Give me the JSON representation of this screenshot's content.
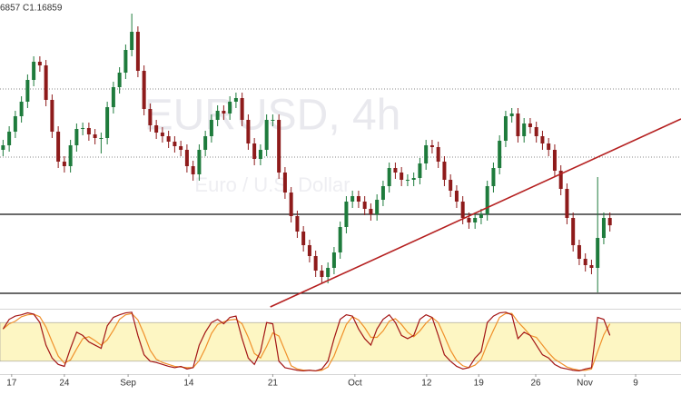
{
  "chart_data": [
    {
      "type": "candlestick",
      "legend_text": "6857 C1.16859",
      "watermark": "EURUSD, 4h",
      "watermark_subtitle": "Euro / U.S. Dollar",
      "up_color": "#1e7b3c",
      "down_color": "#8e1b1b",
      "xlim": [
        -0.5,
        110.6
      ],
      "ylim": [
        1.1594,
        1.1934
      ],
      "x": [
        0,
        1,
        2,
        3,
        4,
        5,
        6,
        7,
        8,
        9,
        10,
        11,
        12,
        13,
        14,
        15,
        16,
        17,
        18,
        19,
        20,
        21,
        22,
        23,
        24,
        25,
        26,
        27,
        28,
        29,
        30,
        31,
        32,
        33,
        34,
        35,
        36,
        37,
        38,
        39,
        40,
        41,
        42,
        43,
        44,
        45,
        46,
        47,
        48,
        49,
        50,
        51,
        52,
        53,
        54,
        55,
        56,
        57,
        58,
        59,
        60,
        61,
        62,
        63,
        64,
        65,
        66,
        67,
        68,
        69,
        70,
        71,
        72,
        73,
        74,
        75,
        76,
        77,
        78,
        79,
        80,
        81,
        82,
        83,
        84,
        85,
        86,
        87,
        88,
        89,
        90,
        91,
        92,
        93,
        94,
        95,
        96,
        97,
        98,
        99
      ],
      "open": [
        1.1769,
        1.1774,
        1.1789,
        1.1806,
        1.1822,
        1.1846,
        1.1866,
        1.1862,
        1.1824,
        1.1789,
        1.1756,
        1.1751,
        1.1774,
        1.1792,
        1.1793,
        1.1786,
        1.1782,
        1.1782,
        1.1816,
        1.1838,
        1.1854,
        1.1879,
        1.1899,
        1.1856,
        1.1814,
        1.1796,
        1.1788,
        1.1784,
        1.1778,
        1.1773,
        1.1769,
        1.1751,
        1.1742,
        1.1769,
        1.1784,
        1.1802,
        1.1812,
        1.1809,
        1.1822,
        1.1826,
        1.1802,
        1.1776,
        1.1759,
        1.1769,
        1.1802,
        1.1802,
        1.1744,
        1.1722,
        1.1696,
        1.1679,
        1.1664,
        1.1652,
        1.1636,
        1.1629,
        1.1639,
        1.1656,
        1.1684,
        1.1712,
        1.1718,
        1.1712,
        1.1704,
        1.1698,
        1.1714,
        1.1729,
        1.1749,
        1.1744,
        1.1736,
        1.1736,
        1.1738,
        1.1754,
        1.1774,
        1.1772,
        1.1756,
        1.1736,
        1.1724,
        1.1712,
        1.1694,
        1.1689,
        1.1694,
        1.1698,
        1.1729,
        1.1749,
        1.1779,
        1.1806,
        1.1809,
        1.1784,
        1.1798,
        1.1794,
        1.1784,
        1.1776,
        1.1769,
        1.1746,
        1.1726,
        1.1694,
        1.1664,
        1.1649,
        1.1642,
        1.1639,
        1.1672,
        1.1694
      ],
      "high": [
        1.178,
        1.1795,
        1.1812,
        1.1828,
        1.1852,
        1.1872,
        1.1872,
        1.1868,
        1.183,
        1.1795,
        1.1762,
        1.178,
        1.1798,
        1.1799,
        1.1799,
        1.1792,
        1.1788,
        1.1822,
        1.1844,
        1.186,
        1.1885,
        1.1919,
        1.1905,
        1.1862,
        1.182,
        1.1802,
        1.1794,
        1.179,
        1.1784,
        1.1779,
        1.1775,
        1.1757,
        1.1775,
        1.179,
        1.1808,
        1.1818,
        1.1818,
        1.1828,
        1.1832,
        1.1832,
        1.1808,
        1.1782,
        1.1775,
        1.1808,
        1.1808,
        1.1808,
        1.175,
        1.1728,
        1.1702,
        1.1685,
        1.167,
        1.1658,
        1.1642,
        1.1645,
        1.1662,
        1.169,
        1.1718,
        1.1724,
        1.1724,
        1.1718,
        1.171,
        1.172,
        1.1735,
        1.1755,
        1.1755,
        1.175,
        1.1742,
        1.1744,
        1.176,
        1.178,
        1.178,
        1.1778,
        1.1762,
        1.1742,
        1.173,
        1.1718,
        1.17,
        1.17,
        1.1704,
        1.1735,
        1.1755,
        1.1785,
        1.1812,
        1.1815,
        1.1815,
        1.1804,
        1.1804,
        1.18,
        1.179,
        1.1782,
        1.1775,
        1.1752,
        1.1732,
        1.17,
        1.167,
        1.1655,
        1.1648,
        1.1739,
        1.17,
        1.17
      ],
      "low": [
        1.1762,
        1.1767,
        1.1782,
        1.1799,
        1.1815,
        1.1839,
        1.1855,
        1.1817,
        1.1782,
        1.1749,
        1.1744,
        1.1744,
        1.1767,
        1.1785,
        1.1779,
        1.1775,
        1.1765,
        1.1775,
        1.1809,
        1.1831,
        1.1847,
        1.1872,
        1.1849,
        1.1807,
        1.1789,
        1.1781,
        1.1777,
        1.1771,
        1.1766,
        1.1762,
        1.1744,
        1.1735,
        1.1735,
        1.1762,
        1.1777,
        1.1795,
        1.1802,
        1.1802,
        1.1815,
        1.1795,
        1.1769,
        1.1752,
        1.1752,
        1.1762,
        1.1795,
        1.1737,
        1.1715,
        1.1689,
        1.1672,
        1.1657,
        1.1645,
        1.1629,
        1.1622,
        1.1622,
        1.1632,
        1.1649,
        1.1677,
        1.1705,
        1.1705,
        1.1697,
        1.1691,
        1.1691,
        1.1707,
        1.1722,
        1.1737,
        1.1729,
        1.1729,
        1.1729,
        1.1731,
        1.1747,
        1.1765,
        1.1749,
        1.1729,
        1.1717,
        1.1705,
        1.1687,
        1.1682,
        1.1682,
        1.1687,
        1.1691,
        1.1722,
        1.1742,
        1.1772,
        1.1799,
        1.1777,
        1.1777,
        1.1787,
        1.1777,
        1.1769,
        1.1762,
        1.1739,
        1.1719,
        1.1687,
        1.1657,
        1.1642,
        1.1635,
        1.1632,
        1.1612,
        1.1665,
        1.1679
      ],
      "close": [
        1.1774,
        1.1789,
        1.1806,
        1.1822,
        1.1846,
        1.1866,
        1.1862,
        1.1824,
        1.1789,
        1.1756,
        1.1751,
        1.1774,
        1.1792,
        1.1793,
        1.1786,
        1.1782,
        1.1782,
        1.1816,
        1.1838,
        1.1854,
        1.1879,
        1.1899,
        1.1856,
        1.1814,
        1.1796,
        1.1788,
        1.1784,
        1.1778,
        1.1773,
        1.1769,
        1.1751,
        1.1742,
        1.1769,
        1.1784,
        1.1802,
        1.1812,
        1.1809,
        1.1822,
        1.1826,
        1.1802,
        1.1776,
        1.1759,
        1.1769,
        1.1802,
        1.1802,
        1.1744,
        1.1722,
        1.1696,
        1.1679,
        1.1664,
        1.1652,
        1.1636,
        1.1629,
        1.1639,
        1.1656,
        1.1684,
        1.1712,
        1.1718,
        1.1712,
        1.1704,
        1.1698,
        1.1714,
        1.1729,
        1.1749,
        1.1744,
        1.1736,
        1.1736,
        1.1738,
        1.1754,
        1.1774,
        1.1772,
        1.1756,
        1.1736,
        1.1724,
        1.1712,
        1.1694,
        1.1689,
        1.1694,
        1.1698,
        1.1729,
        1.1749,
        1.1779,
        1.1806,
        1.1809,
        1.1784,
        1.1798,
        1.1794,
        1.1784,
        1.1776,
        1.1769,
        1.1746,
        1.1726,
        1.1694,
        1.1664,
        1.1649,
        1.1642,
        1.1639,
        1.1672,
        1.1694,
        1.16859
      ],
      "hlines": [
        {
          "value": 1.1836,
          "style": "dotted",
          "color": "#8a8a8a"
        },
        {
          "value": 1.1761,
          "style": "dotted",
          "color": "#8a8a8a"
        },
        {
          "value": 1.1698,
          "style": "solid",
          "color": "#111111"
        },
        {
          "value": 1.1611,
          "style": "solid",
          "color": "#111111"
        }
      ],
      "trendline": {
        "x": [
          43.6,
          110.6
        ],
        "y": [
          1.1596,
          1.1803
        ],
        "color": "#b52020"
      }
    },
    {
      "type": "line",
      "xlim": [
        -0.5,
        110.6
      ],
      "ylim": [
        0,
        100
      ],
      "band": [
        20,
        80
      ],
      "band_color": "#fdf6c3",
      "x": [
        0,
        1,
        2,
        3,
        4,
        5,
        6,
        7,
        8,
        9,
        10,
        11,
        12,
        13,
        14,
        15,
        16,
        17,
        18,
        19,
        20,
        21,
        22,
        23,
        24,
        25,
        26,
        27,
        28,
        29,
        30,
        31,
        32,
        33,
        34,
        35,
        36,
        37,
        38,
        39,
        40,
        41,
        42,
        43,
        44,
        45,
        46,
        47,
        48,
        49,
        50,
        51,
        52,
        53,
        54,
        55,
        56,
        57,
        58,
        59,
        60,
        61,
        62,
        63,
        64,
        65,
        66,
        67,
        68,
        69,
        70,
        71,
        72,
        73,
        74,
        75,
        76,
        77,
        78,
        79,
        80,
        81,
        82,
        83,
        84,
        85,
        86,
        87,
        88,
        89,
        90,
        91,
        92,
        93,
        94,
        95,
        96,
        97,
        98,
        99
      ],
      "xticks": [
        {
          "value": 1.4,
          "label": "17"
        },
        {
          "value": 10,
          "label": "24"
        },
        {
          "value": 20.4,
          "label": "Sep"
        },
        {
          "value": 30.3,
          "label": "14"
        },
        {
          "value": 44,
          "label": "21"
        },
        {
          "value": 57.4,
          "label": "Oct"
        },
        {
          "value": 69.1,
          "label": "12"
        },
        {
          "value": 77.6,
          "label": "19"
        },
        {
          "value": 86.9,
          "label": "26"
        },
        {
          "value": 94.9,
          "label": "Nov"
        },
        {
          "value": 103.2,
          "label": "9"
        }
      ],
      "series": [
        {
          "color": "#f0902a",
          "values": [
            70,
            78,
            82,
            89,
            92,
            93,
            89,
            73,
            50,
            28,
            17,
            22,
            39,
            55,
            58,
            52,
            45,
            53,
            68,
            85,
            92,
            94,
            84,
            62,
            37,
            23,
            18,
            15,
            12,
            11,
            10,
            10,
            21,
            40,
            63,
            77,
            81,
            84,
            85,
            78,
            57,
            32,
            25,
            43,
            64,
            59,
            36,
            13,
            8,
            6,
            6,
            5,
            6,
            11,
            28,
            53,
            77,
            89,
            84,
            72,
            57,
            57,
            67,
            82,
            86,
            77,
            65,
            58,
            67,
            79,
            88,
            80,
            59,
            37,
            21,
            13,
            10,
            14,
            23,
            47,
            68,
            88,
            94,
            94,
            81,
            71,
            60,
            57,
            45,
            33,
            23,
            17,
            11,
            8,
            6,
            6,
            8,
            35,
            61,
            78
          ]
        },
        {
          "color": "#a31515",
          "values": [
            70,
            85,
            90,
            92,
            95,
            93,
            80,
            45,
            25,
            15,
            12,
            40,
            65,
            60,
            50,
            45,
            40,
            75,
            88,
            92,
            95,
            96,
            60,
            30,
            20,
            18,
            15,
            12,
            10,
            12,
            8,
            10,
            45,
            65,
            80,
            85,
            78,
            88,
            90,
            55,
            25,
            15,
            35,
            80,
            78,
            20,
            10,
            8,
            6,
            5,
            6,
            5,
            8,
            20,
            55,
            85,
            92,
            90,
            70,
            55,
            45,
            70,
            85,
            92,
            80,
            60,
            55,
            60,
            85,
            92,
            88,
            60,
            30,
            20,
            12,
            8,
            10,
            25,
            35,
            80,
            90,
            95,
            96,
            92,
            55,
            65,
            60,
            45,
            30,
            25,
            15,
            10,
            8,
            6,
            5,
            8,
            10,
            88,
            85,
            60
          ]
        }
      ]
    }
  ]
}
